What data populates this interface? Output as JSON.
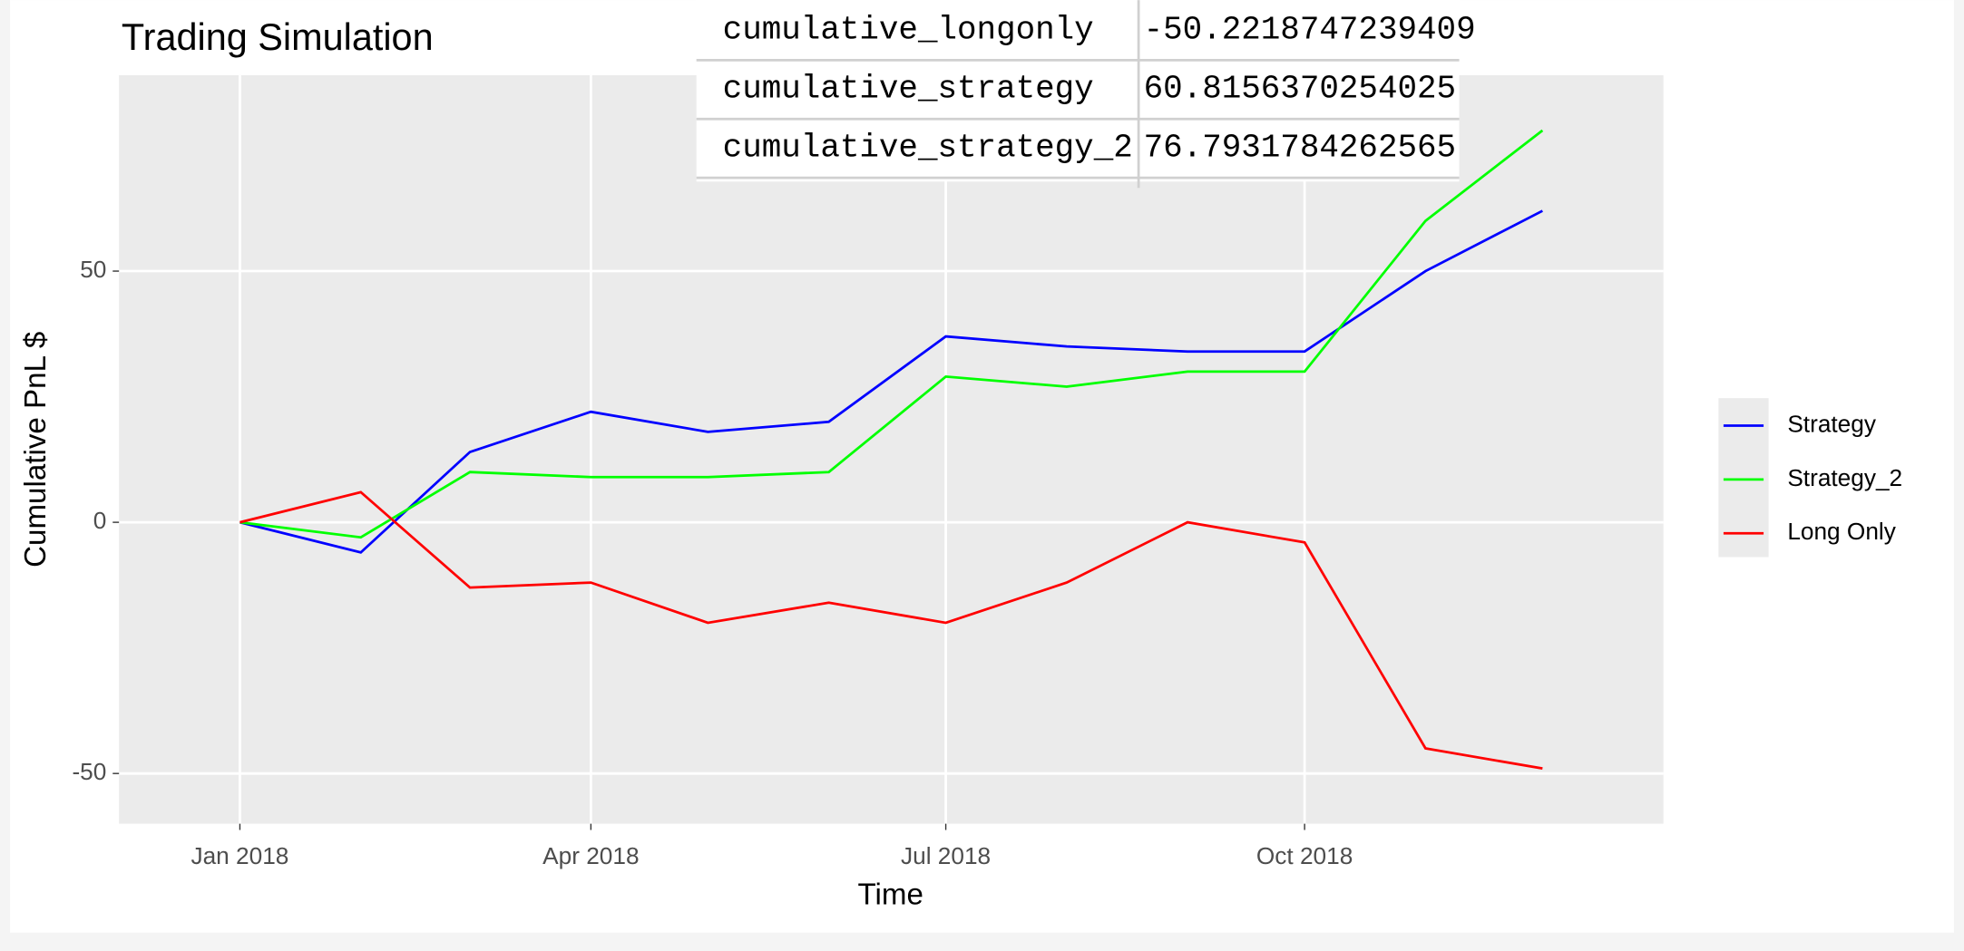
{
  "chart_data": {
    "type": "line",
    "title": "Trading Simulation",
    "x_label": "Time",
    "y_label": "Cumulative PnL $",
    "x": [
      "2018-01",
      "2018-02",
      "2018-03",
      "2018-04",
      "2018-05",
      "2018-06",
      "2018-07",
      "2018-08",
      "2018-09",
      "2018-10",
      "2018-11",
      "2018-12"
    ],
    "series": [
      {
        "name": "Strategy",
        "color": "#0000ff",
        "values": [
          0,
          -6,
          14,
          22,
          18,
          20,
          37,
          35,
          34,
          34,
          50,
          62
        ]
      },
      {
        "name": "Strategy_2",
        "color": "#00ff00",
        "values": [
          0,
          -3,
          10,
          9,
          9,
          10,
          29,
          27,
          30,
          30,
          60,
          78
        ]
      },
      {
        "name": "Long Only",
        "color": "#ff0000",
        "values": [
          0,
          6,
          -13,
          -12,
          -20,
          -16,
          -20,
          -12,
          0,
          -4,
          -45,
          -49
        ]
      }
    ],
    "xlim": [
      "2017-12",
      "2019-01"
    ],
    "xticks": [
      {
        "value": "2018-01",
        "label": "Jan 2018"
      },
      {
        "value": "2018-04",
        "label": "Apr 2018"
      },
      {
        "value": "2018-07",
        "label": "Jul 2018"
      },
      {
        "value": "2018-10",
        "label": "Oct 2018"
      }
    ],
    "ylim": [
      -60,
      89
    ],
    "yticks": [
      -50,
      0,
      50
    ],
    "grid": true,
    "legend": "right"
  },
  "table": {
    "rows": [
      [
        "cumulative_longonly",
        "-50.2218747239409"
      ],
      [
        "cumulative_strategy",
        "60.8156370254025"
      ],
      [
        "cumulative_strategy_2",
        "76.7931784262565"
      ]
    ]
  }
}
